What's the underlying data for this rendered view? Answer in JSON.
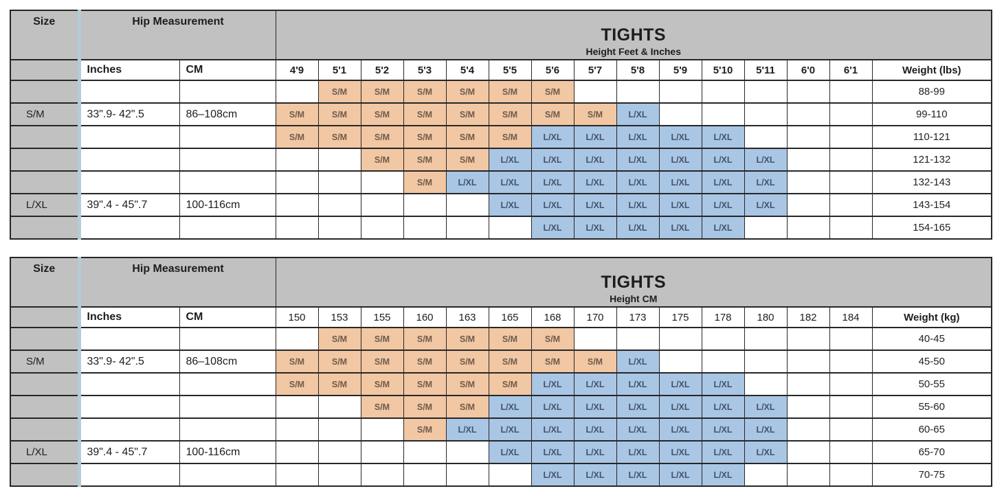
{
  "colors": {
    "header-bg": "#c1c1c1",
    "sm-bg": "#f2c7a3",
    "sm-text": "#6e5b4b",
    "lxl-bg": "#a9c6e5",
    "lxl-text": "#44546a",
    "border": "#262626",
    "size-accent": "#b5cbd7",
    "page-bg": "#ffffff"
  },
  "legend": {
    "sm_label": "S/M",
    "lxl_label": "L/XL"
  },
  "tables": [
    {
      "title": "TIGHTS",
      "subtitle": "Height Feet & Inches",
      "size_header": "Size",
      "hip_header": "Hip Measurement",
      "inches_header": "Inches",
      "cm_header": "CM",
      "weight_header": "Weight (lbs)",
      "height_columns": [
        "4'9",
        "5'1",
        "5'2",
        "5'3",
        "5'4",
        "5'5",
        "5'6",
        "5'7",
        "5'8",
        "5'9",
        "5'10",
        "5'11",
        "6'0",
        "6'1"
      ],
      "rows": [
        {
          "size": "",
          "inches": "",
          "cm": "",
          "cells": [
            "",
            "S/M",
            "S/M",
            "S/M",
            "S/M",
            "S/M",
            "S/M",
            "",
            "",
            "",
            "",
            "",
            "",
            ""
          ],
          "weight": "88-99"
        },
        {
          "size": "S/M",
          "inches": "33\".9- 42\".5",
          "cm": "86–108cm",
          "cells": [
            "S/M",
            "S/M",
            "S/M",
            "S/M",
            "S/M",
            "S/M",
            "S/M",
            "S/M",
            "L/XL",
            "",
            "",
            "",
            "",
            ""
          ],
          "weight": "99-110"
        },
        {
          "size": "",
          "inches": "",
          "cm": "",
          "cells": [
            "S/M",
            "S/M",
            "S/M",
            "S/M",
            "S/M",
            "S/M",
            "L/XL",
            "L/XL",
            "L/XL",
            "L/XL",
            "L/XL",
            "",
            "",
            ""
          ],
          "weight": "110-121"
        },
        {
          "size": "",
          "inches": "",
          "cm": "",
          "cells": [
            "",
            "",
            "S/M",
            "S/M",
            "S/M",
            "L/XL",
            "L/XL",
            "L/XL",
            "L/XL",
            "L/XL",
            "L/XL",
            "L/XL",
            "",
            ""
          ],
          "weight": "121-132"
        },
        {
          "size": "",
          "inches": "",
          "cm": "",
          "cells": [
            "",
            "",
            "",
            "S/M",
            "L/XL",
            "L/XL",
            "L/XL",
            "L/XL",
            "L/XL",
            "L/XL",
            "L/XL",
            "L/XL",
            "",
            ""
          ],
          "weight": "132-143"
        },
        {
          "size": "L/XL",
          "inches": "39\".4 - 45\".7",
          "cm": "100-116cm",
          "cells": [
            "",
            "",
            "",
            "",
            "",
            "L/XL",
            "L/XL",
            "L/XL",
            "L/XL",
            "L/XL",
            "L/XL",
            "L/XL",
            "",
            ""
          ],
          "weight": "143-154"
        },
        {
          "size": "",
          "inches": "",
          "cm": "",
          "cells": [
            "",
            "",
            "",
            "",
            "",
            "",
            "L/XL",
            "L/XL",
            "L/XL",
            "L/XL",
            "L/XL",
            "",
            "",
            ""
          ],
          "weight": "154-165"
        }
      ]
    },
    {
      "title": "TIGHTS",
      "subtitle": "Height CM",
      "size_header": "Size",
      "hip_header": "Hip Measurement",
      "inches_header": "Inches",
      "cm_header": "CM",
      "weight_header": "Weight (kg)",
      "height_columns": [
        "150",
        "153",
        "155",
        "160",
        "163",
        "165",
        "168",
        "170",
        "173",
        "175",
        "178",
        "180",
        "182",
        "184"
      ],
      "rows": [
        {
          "size": "",
          "inches": "",
          "cm": "",
          "cells": [
            "",
            "S/M",
            "S/M",
            "S/M",
            "S/M",
            "S/M",
            "S/M",
            "",
            "",
            "",
            "",
            "",
            "",
            ""
          ],
          "weight": "40-45"
        },
        {
          "size": "S/M",
          "inches": "33\".9- 42\".5",
          "cm": "86–108cm",
          "cells": [
            "S/M",
            "S/M",
            "S/M",
            "S/M",
            "S/M",
            "S/M",
            "S/M",
            "S/M",
            "L/XL",
            "",
            "",
            "",
            "",
            ""
          ],
          "weight": "45-50"
        },
        {
          "size": "",
          "inches": "",
          "cm": "",
          "cells": [
            "S/M",
            "S/M",
            "S/M",
            "S/M",
            "S/M",
            "S/M",
            "L/XL",
            "L/XL",
            "L/XL",
            "L/XL",
            "L/XL",
            "",
            "",
            ""
          ],
          "weight": "50-55"
        },
        {
          "size": "",
          "inches": "",
          "cm": "",
          "cells": [
            "",
            "",
            "S/M",
            "S/M",
            "S/M",
            "L/XL",
            "L/XL",
            "L/XL",
            "L/XL",
            "L/XL",
            "L/XL",
            "L/XL",
            "",
            ""
          ],
          "weight": "55-60"
        },
        {
          "size": "",
          "inches": "",
          "cm": "",
          "cells": [
            "",
            "",
            "",
            "S/M",
            "L/XL",
            "L/XL",
            "L/XL",
            "L/XL",
            "L/XL",
            "L/XL",
            "L/XL",
            "L/XL",
            "",
            ""
          ],
          "weight": "60-65"
        },
        {
          "size": "L/XL",
          "inches": "39\".4 - 45\".7",
          "cm": "100-116cm",
          "cells": [
            "",
            "",
            "",
            "",
            "",
            "L/XL",
            "L/XL",
            "L/XL",
            "L/XL",
            "L/XL",
            "L/XL",
            "L/XL",
            "",
            ""
          ],
          "weight": "65-70"
        },
        {
          "size": "",
          "inches": "",
          "cm": "",
          "cells": [
            "",
            "",
            "",
            "",
            "",
            "",
            "L/XL",
            "L/XL",
            "L/XL",
            "L/XL",
            "L/XL",
            "",
            "",
            ""
          ],
          "weight": "70-75"
        }
      ]
    }
  ]
}
